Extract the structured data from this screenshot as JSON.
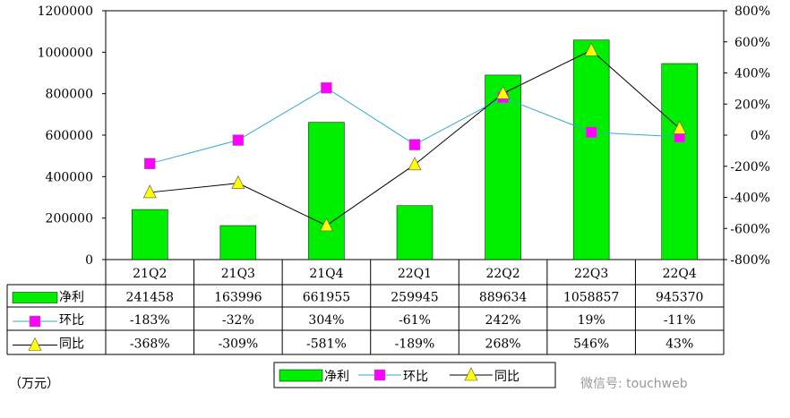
{
  "chart_data": {
    "type": "bar+line",
    "unit_label": "（万元）",
    "categories": [
      "21Q2",
      "21Q3",
      "21Q4",
      "22Q1",
      "22Q2",
      "22Q3",
      "22Q4"
    ],
    "left_axis": {
      "ylim": [
        0,
        1200000
      ],
      "ticks": [
        "0",
        "200000",
        "400000",
        "600000",
        "800000",
        "1000000",
        "1200000"
      ]
    },
    "right_axis": {
      "ylim": [
        -800,
        800
      ],
      "ticks": [
        "-800%",
        "-600%",
        "-400%",
        "-200%",
        "0%",
        "200%",
        "400%",
        "600%",
        "800%"
      ]
    },
    "series": [
      {
        "name": "净利",
        "type": "bar",
        "axis": "left",
        "color": "#00ee00",
        "values": [
          241458,
          163996,
          661955,
          259945,
          889634,
          1058857,
          945370
        ],
        "labels": [
          "241458",
          "163996",
          "661955",
          "259945",
          "889634",
          "1058857",
          "945370"
        ]
      },
      {
        "name": "环比",
        "type": "line",
        "axis": "right",
        "color": "#33aacc",
        "marker": "square",
        "marker_color": "#ff00ff",
        "values": [
          -183,
          -32,
          304,
          -61,
          242,
          19,
          -11
        ],
        "labels": [
          "-183%",
          "-32%",
          "304%",
          "-61%",
          "242%",
          "19%",
          "-11%"
        ]
      },
      {
        "name": "同比",
        "type": "line",
        "axis": "right",
        "color": "#000000",
        "marker": "triangle",
        "marker_color": "#ffff00",
        "values": [
          -368,
          -309,
          -581,
          -189,
          268,
          546,
          43
        ],
        "labels": [
          "-368%",
          "-309%",
          "-581%",
          "-189%",
          "268%",
          "546%",
          "43%"
        ]
      }
    ],
    "grid": false,
    "legend": "bottom",
    "data_table": true
  },
  "watermark": "微信号: touchweb"
}
